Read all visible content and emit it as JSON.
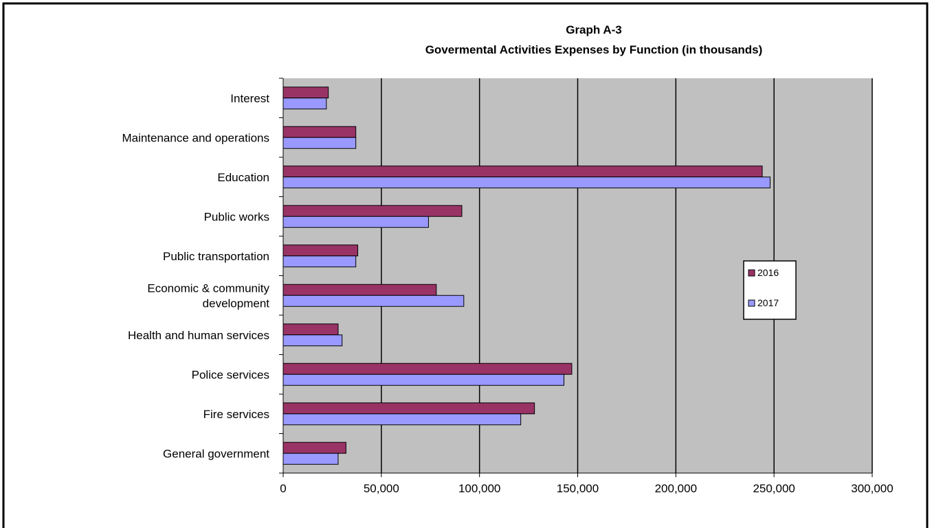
{
  "chart_data": {
    "type": "bar",
    "orientation": "horizontal",
    "title": "Graph A-3",
    "subtitle": "Govermental Activities Expenses by Function (in thousands)",
    "categories": [
      "Interest",
      "Maintenance and operations",
      "Education",
      "Public works",
      "Public transportation",
      "Economic & community development",
      "Health and human services",
      "Police services",
      "Fire services",
      "General government"
    ],
    "category_lines": [
      [
        "Interest"
      ],
      [
        "Maintenance and operations"
      ],
      [
        "Education"
      ],
      [
        "Public works"
      ],
      [
        "Public transportation"
      ],
      [
        "Economic & community",
        "development"
      ],
      [
        "Health and human services"
      ],
      [
        "Police services"
      ],
      [
        "Fire services"
      ],
      [
        "General government"
      ]
    ],
    "series": [
      {
        "name": "2016",
        "color": "#993366",
        "values": [
          23000,
          37000,
          244000,
          91000,
          38000,
          78000,
          28000,
          147000,
          128000,
          32000
        ]
      },
      {
        "name": "2017",
        "color": "#9999ff",
        "values": [
          22000,
          37000,
          248000,
          74000,
          37000,
          92000,
          30000,
          143000,
          121000,
          28000
        ]
      }
    ],
    "xlim": [
      0,
      300000
    ],
    "xticks": [
      0,
      50000,
      100000,
      150000,
      200000,
      250000,
      300000
    ],
    "xtick_labels": [
      "0",
      "50,000",
      "100,000",
      "150,000",
      "200,000",
      "250,000",
      "300,000"
    ],
    "grid": "vertical",
    "plot_background": "#c0c0c0",
    "legend_position": "right"
  }
}
